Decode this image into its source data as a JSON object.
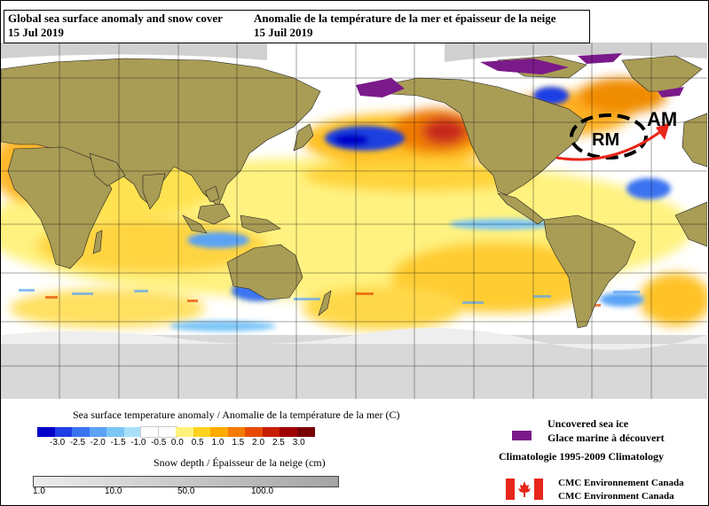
{
  "title": {
    "en_line1": "Global sea surface anomaly and snow cover",
    "en_line2": "15 Jul 2019",
    "fr_line1": "Anomalie de la température de la mer et épaisseur de la neige",
    "fr_line2": "15 Juil 2019"
  },
  "map": {
    "annotation_rm": "RM",
    "annotation_am": "AM",
    "colors": {
      "ocean": "#ffffff",
      "land": "#a99c55",
      "ice": "#7b1a8a",
      "snow": "#d8d8d8",
      "annotation_arrow": "#e8261a"
    }
  },
  "legend": {
    "sst_title": "Sea surface temperature anomaly / Anomalie de la température de la mer (C)",
    "sst_colors": [
      "#0000c8",
      "#1f3fe6",
      "#3b73f0",
      "#5aa3f5",
      "#7cc6f7",
      "#a8e0fa",
      "#ffffff",
      "#ffffff",
      "#fff27a",
      "#ffd21e",
      "#ffab00",
      "#f57a00",
      "#e64b00",
      "#c81e00",
      "#a00000",
      "#780000"
    ],
    "sst_ticks": [
      "-3.0",
      "-2.5",
      "-2.0",
      "-1.5",
      "-1.0",
      "-0.5",
      "0.0",
      "0.5",
      "1.0",
      "1.5",
      "2.0",
      "2.5",
      "3.0"
    ],
    "snow_title": "Snow depth / Épaisseur de la neige (cm)",
    "snow_ticks": [
      "1.0",
      "10.0",
      "50.0",
      "100.0"
    ],
    "snow_colors": [
      "#ececec",
      "#d4d4d4",
      "#bcbcbc",
      "#a4a4a4"
    ],
    "ice_en": "Uncovered sea ice",
    "ice_fr": "Glace marine à découvert",
    "climatology": "Climatologie 1995-2009 Climatology",
    "agency_fr": "CMC Environnement Canada",
    "agency_en": "CMC Environment Canada"
  }
}
